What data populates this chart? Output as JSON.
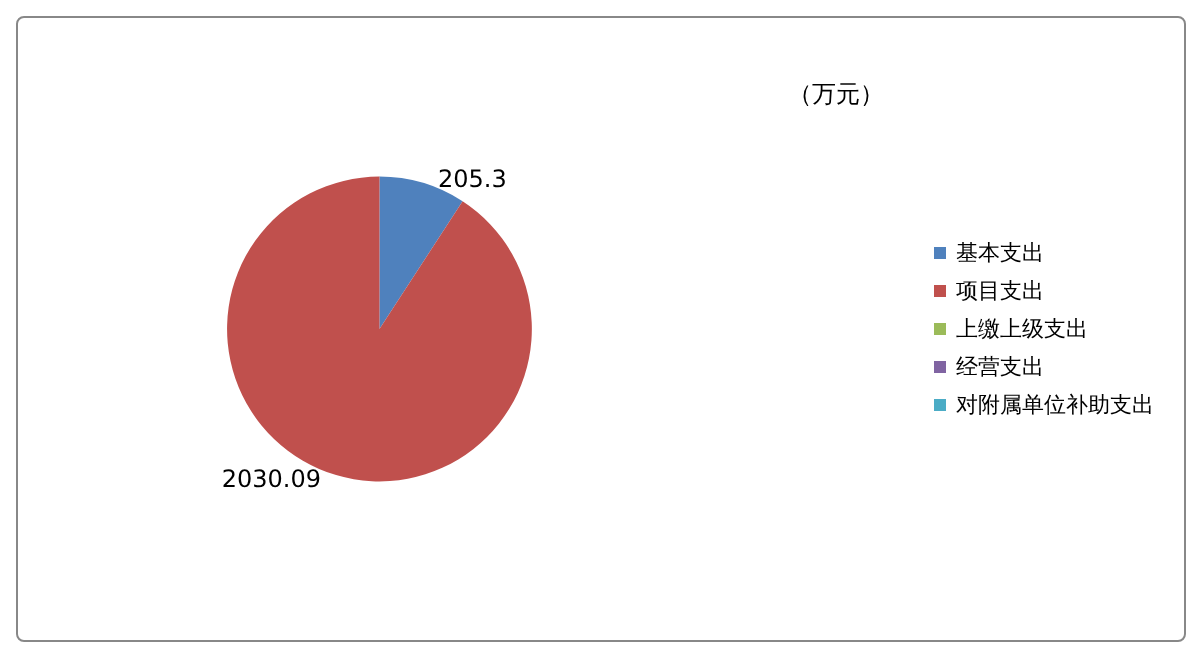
{
  "chart_data": {
    "type": "pie",
    "categories": [
      "基本支出",
      "项目支出",
      "上缴上级支出",
      "经营支出",
      "对附属单位补助支出"
    ],
    "values": [
      205.3,
      2030.09,
      0,
      0,
      0
    ],
    "colors": [
      "#4f81bd",
      "#c0504d",
      "#9bbb59",
      "#8064a2",
      "#4bacc6"
    ],
    "value_labels": [
      "205.3",
      "2030.09",
      null,
      null,
      null
    ],
    "annotations": [
      "（万元）"
    ],
    "legend": "right"
  }
}
